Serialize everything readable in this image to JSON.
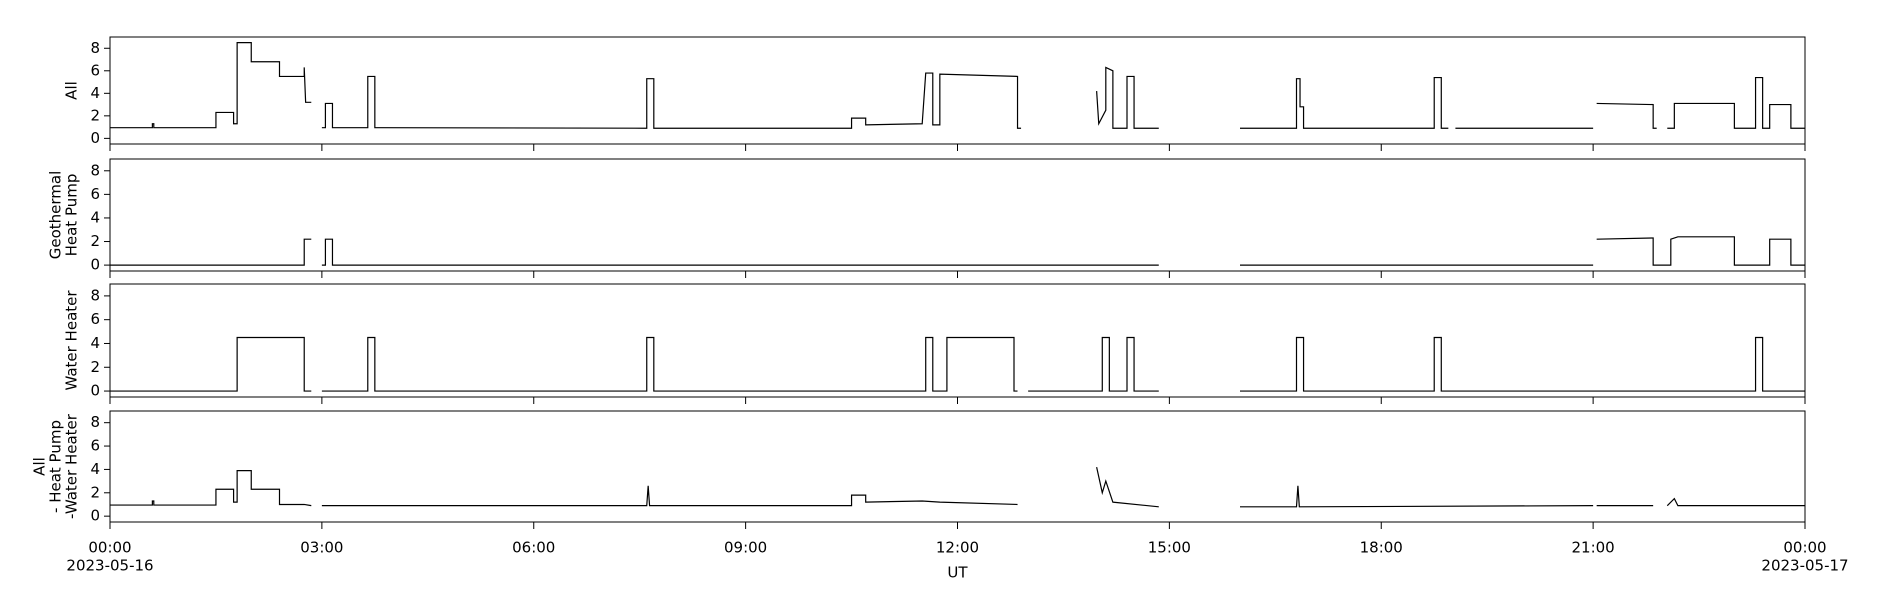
{
  "chart_data": [
    {
      "type": "line",
      "ylabel": [
        "All"
      ],
      "color": "#000000",
      "ylim": [
        -0.5,
        9
      ],
      "yticks": [
        0,
        2,
        4,
        6,
        8
      ],
      "x": [
        0,
        0.6,
        0.6,
        0.62,
        0.62,
        1.5,
        1.5,
        1.75,
        1.75,
        1.8,
        1.8,
        2.0,
        2.0,
        2.4,
        2.4,
        2.75,
        2.75,
        2.77,
        2.85,
        2.92,
        3.0,
        3.05,
        3.05,
        3.15,
        3.15,
        3.65,
        3.65,
        3.75,
        3.75,
        7.6,
        7.6,
        7.7,
        7.7,
        10.5,
        10.5,
        10.7,
        10.7,
        11.5,
        11.55,
        11.65,
        11.65,
        11.75,
        11.75,
        12.85,
        12.85,
        12.9,
        13.4,
        13.97,
        14.0,
        14.1,
        14.1,
        14.2,
        14.2,
        14.4,
        14.4,
        14.5,
        14.5,
        14.85,
        15.4,
        16.0,
        16.8,
        16.8,
        16.85,
        16.85,
        16.9,
        16.9,
        18.75,
        18.75,
        18.85,
        18.85,
        18.95,
        19.0,
        19.05,
        21.0,
        21.02,
        21.05,
        21.85,
        21.85,
        21.9,
        21.97,
        22.05,
        22.15,
        22.15,
        23.0,
        23.0,
        23.3,
        23.3,
        23.4,
        23.4,
        23.5,
        23.5,
        23.8,
        23.8,
        24
      ],
      "values": [
        0.95,
        0.95,
        1.3,
        1.3,
        0.95,
        0.95,
        2.3,
        2.3,
        1.3,
        1.3,
        8.5,
        8.5,
        6.8,
        6.8,
        5.5,
        5.5,
        6.3,
        3.2,
        3.2,
        null,
        0.95,
        0.95,
        3.1,
        3.1,
        0.95,
        0.95,
        5.5,
        5.5,
        0.95,
        0.9,
        5.3,
        5.3,
        0.9,
        0.9,
        1.8,
        1.8,
        1.2,
        1.3,
        5.8,
        5.8,
        1.2,
        1.2,
        5.7,
        5.5,
        0.9,
        0.9,
        null,
        4.2,
        1.3,
        2.5,
        6.3,
        6.0,
        0.9,
        0.9,
        5.5,
        5.5,
        0.9,
        0.9,
        null,
        0.9,
        0.9,
        5.3,
        5.3,
        2.8,
        2.8,
        0.9,
        0.9,
        5.4,
        5.4,
        0.9,
        0.9,
        null,
        0.9,
        0.9,
        null,
        3.1,
        3.0,
        0.9,
        0.9,
        null,
        0.9,
        0.9,
        3.1,
        3.1,
        0.9,
        0.9,
        5.4,
        5.4,
        0.9,
        0.9,
        3.0,
        3.0,
        0.9,
        0.9
      ]
    },
    {
      "type": "line",
      "ylabel": [
        "Geothermal",
        "Heat Pump"
      ],
      "color": "#000000",
      "ylim": [
        -0.5,
        9
      ],
      "yticks": [
        0,
        2,
        4,
        6,
        8
      ],
      "x": [
        0,
        2.75,
        2.75,
        2.85,
        2.92,
        3.0,
        3.05,
        3.05,
        3.15,
        3.15,
        14.85,
        15.4,
        16.0,
        21.0,
        21.02,
        21.05,
        21.85,
        21.85,
        22.1,
        22.1,
        22.2,
        23.0,
        23.0,
        23.5,
        23.5,
        23.8,
        23.8,
        24
      ],
      "values": [
        0,
        0,
        2.2,
        2.2,
        null,
        0,
        0,
        2.2,
        2.2,
        0,
        0,
        null,
        0,
        0,
        null,
        2.2,
        2.3,
        0,
        0,
        2.2,
        2.4,
        2.4,
        0,
        0,
        2.2,
        2.2,
        0,
        0
      ]
    },
    {
      "type": "line",
      "ylabel": [
        "Water Heater"
      ],
      "color": "#000000",
      "ylim": [
        -0.5,
        9
      ],
      "yticks": [
        0,
        2,
        4,
        6,
        8
      ],
      "x": [
        0,
        1.8,
        1.8,
        2.75,
        2.75,
        2.85,
        2.92,
        3.0,
        3.65,
        3.65,
        3.75,
        3.75,
        7.6,
        7.6,
        7.7,
        7.7,
        11.55,
        11.55,
        11.65,
        11.65,
        11.85,
        11.85,
        12.8,
        12.8,
        12.85,
        12.92,
        13.0,
        14.05,
        14.05,
        14.15,
        14.15,
        14.4,
        14.4,
        14.5,
        14.5,
        14.85,
        15.4,
        16.0,
        16.8,
        16.8,
        16.9,
        16.9,
        18.75,
        18.75,
        18.85,
        18.85,
        23.3,
        23.3,
        23.4,
        23.4,
        24
      ],
      "values": [
        0,
        0,
        4.5,
        4.5,
        0,
        0,
        null,
        0,
        0,
        4.5,
        4.5,
        0,
        0,
        4.5,
        4.5,
        0,
        0,
        4.5,
        4.5,
        0,
        0,
        4.5,
        4.5,
        0,
        0,
        null,
        0,
        0,
        4.5,
        4.5,
        0,
        0,
        4.5,
        4.5,
        0,
        0,
        null,
        0,
        0,
        4.5,
        4.5,
        0,
        0,
        4.5,
        4.5,
        0,
        0,
        4.5,
        4.5,
        0,
        0
      ]
    },
    {
      "type": "line",
      "ylabel": [
        "All",
        "- Heat Pump",
        "-Water Heater"
      ],
      "xlabel": "UT",
      "color": "#000000",
      "ylim": [
        -0.5,
        9
      ],
      "yticks": [
        0,
        2,
        4,
        6,
        8
      ],
      "xlim": [
        0,
        24
      ],
      "xticks": [
        {
          "value": 0,
          "label": "00:00",
          "date": "2023-05-16"
        },
        {
          "value": 3,
          "label": "03:00"
        },
        {
          "value": 6,
          "label": "06:00"
        },
        {
          "value": 9,
          "label": "09:00"
        },
        {
          "value": 12,
          "label": "12:00"
        },
        {
          "value": 15,
          "label": "15:00"
        },
        {
          "value": 18,
          "label": "18:00"
        },
        {
          "value": 21,
          "label": "21:00"
        },
        {
          "value": 24,
          "label": "00:00",
          "date": "2023-05-17"
        }
      ],
      "x": [
        0,
        0.6,
        0.6,
        0.62,
        0.62,
        1.5,
        1.5,
        1.75,
        1.75,
        1.8,
        1.8,
        2.0,
        2.0,
        2.4,
        2.4,
        2.75,
        2.85,
        2.92,
        3.0,
        7.6,
        7.62,
        7.64,
        10.5,
        10.5,
        10.7,
        10.7,
        11.5,
        11.75,
        12.85,
        13.4,
        13.97,
        14.05,
        14.1,
        14.2,
        14.85,
        15.4,
        16.0,
        16.8,
        16.82,
        16.84,
        21.0,
        21.02,
        21.05,
        21.85,
        21.95,
        22.05,
        22.15,
        22.2,
        24
      ],
      "values": [
        0.95,
        0.95,
        1.3,
        1.3,
        0.95,
        0.95,
        2.3,
        2.3,
        1.2,
        1.2,
        3.9,
        3.9,
        2.3,
        2.3,
        1.0,
        1.0,
        0.9,
        null,
        0.9,
        0.9,
        2.6,
        0.9,
        0.9,
        1.8,
        1.8,
        1.2,
        1.3,
        1.2,
        1.0,
        null,
        4.2,
        2.0,
        3.0,
        1.2,
        0.8,
        null,
        0.8,
        0.8,
        2.6,
        0.8,
        0.9,
        null,
        0.9,
        0.9,
        null,
        0.9,
        1.5,
        0.9,
        0.9
      ]
    }
  ]
}
